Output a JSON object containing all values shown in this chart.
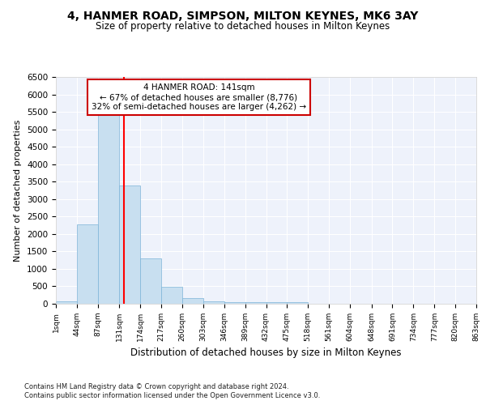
{
  "title1": "4, HANMER ROAD, SIMPSON, MILTON KEYNES, MK6 3AY",
  "title2": "Size of property relative to detached houses in Milton Keynes",
  "xlabel": "Distribution of detached houses by size in Milton Keynes",
  "ylabel": "Number of detached properties",
  "footnote1": "Contains HM Land Registry data © Crown copyright and database right 2024.",
  "footnote2": "Contains public sector information licensed under the Open Government Licence v3.0.",
  "bin_edges": [
    1,
    44,
    87,
    131,
    174,
    217,
    260,
    303,
    346,
    389,
    432,
    475,
    518,
    561,
    604,
    648,
    691,
    734,
    777,
    820,
    863
  ],
  "bar_heights": [
    80,
    2270,
    5430,
    3380,
    1300,
    480,
    165,
    80,
    55,
    50,
    40,
    40,
    0,
    0,
    0,
    0,
    0,
    0,
    0,
    0
  ],
  "bar_color": "#c8dff0",
  "bar_edge_color": "#7db3d8",
  "red_line_x": 141,
  "annotation_title": "4 HANMER ROAD: 141sqm",
  "annotation_line1": "← 67% of detached houses are smaller (8,776)",
  "annotation_line2": "32% of semi-detached houses are larger (4,262) →",
  "ylim": [
    0,
    6500
  ],
  "yticks": [
    0,
    500,
    1000,
    1500,
    2000,
    2500,
    3000,
    3500,
    4000,
    4500,
    5000,
    5500,
    6000,
    6500
  ],
  "background_color": "#eef2fb",
  "grid_color": "#ffffff",
  "annotation_box_color": "#ffffff",
  "annotation_box_edge": "#cc0000"
}
